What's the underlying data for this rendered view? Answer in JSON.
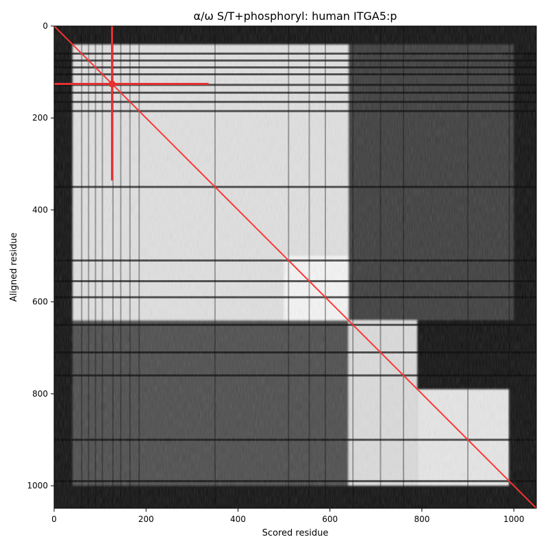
{
  "chart_data": {
    "type": "heatmap",
    "title": "α/ω S/T+phosphoryl: human ITGA5:p",
    "xlabel": "Scored residue",
    "ylabel": "Aligned residue",
    "xlim": [
      0,
      1049
    ],
    "ylim": [
      1049,
      0
    ],
    "x_ticks": [
      0,
      200,
      400,
      600,
      800,
      1000
    ],
    "y_ticks": [
      0,
      200,
      400,
      600,
      800,
      1000
    ],
    "colormap": "grayscale",
    "grid": false,
    "legend": "none",
    "diagonal_line": {
      "from": [
        0,
        0
      ],
      "to": [
        1049,
        1049
      ],
      "color": "#ff3333"
    },
    "highlight_site": {
      "residue": 126,
      "color": "#e83030"
    },
    "domain_blocks": [
      {
        "x": [
          40,
          640
        ],
        "y": [
          40,
          640
        ],
        "level": 0.88
      },
      {
        "x": [
          500,
          640
        ],
        "y": [
          500,
          640
        ],
        "level": 0.96
      },
      {
        "x": [
          640,
          790
        ],
        "y": [
          640,
          1000
        ],
        "level": 0.86
      },
      {
        "x": [
          790,
          990
        ],
        "y": [
          790,
          1000
        ],
        "level": 0.9
      },
      {
        "x": [
          40,
          640
        ],
        "y": [
          640,
          1000
        ],
        "level": 0.3
      },
      {
        "x": [
          640,
          1000
        ],
        "y": [
          40,
          640
        ],
        "level": 0.24
      }
    ],
    "dark_bands": [
      60,
      75,
      90,
      105,
      128,
      145,
      165,
      185,
      350,
      510,
      555,
      590,
      650,
      710,
      760,
      900,
      990
    ]
  },
  "colors": {
    "background": "#ffffff",
    "diagonal": "#ff3333",
    "highlight": "#e83030"
  }
}
